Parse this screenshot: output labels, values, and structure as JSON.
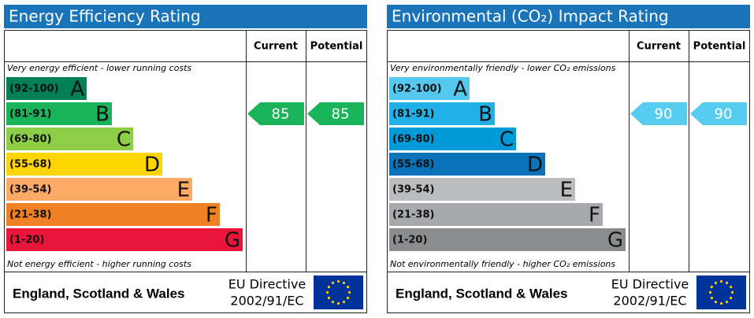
{
  "panels": [
    {
      "title": "Energy Efficiency Rating",
      "columns": [
        "Current",
        "Potential"
      ],
      "top_note": "Very energy efficient - lower running costs",
      "bottom_note": "Not energy efficient - higher running costs",
      "bands": [
        {
          "range": "(92-100)",
          "letter": "A",
          "color": "#008054"
        },
        {
          "range": "(81-91)",
          "letter": "B",
          "color": "#19b459"
        },
        {
          "range": "(69-80)",
          "letter": "C",
          "color": "#8dce46"
        },
        {
          "range": "(55-68)",
          "letter": "D",
          "color": "#ffd500"
        },
        {
          "range": "(39-54)",
          "letter": "E",
          "color": "#fcaa65"
        },
        {
          "range": "(21-38)",
          "letter": "F",
          "color": "#ef8023"
        },
        {
          "range": "(1-20)",
          "letter": "G",
          "color": "#e9153b"
        }
      ],
      "current": 85,
      "potential": 85,
      "arrow_color": "#19b459",
      "region": "England, Scotland & Wales",
      "directive": [
        "EU Directive",
        "2002/91/EC"
      ]
    },
    {
      "title": "Environmental (CO₂) Impact Rating",
      "columns": [
        "Current",
        "Potential"
      ],
      "top_note": "Very environmentally friendly - lower CO₂ emissions",
      "bottom_note": "Not environmentally friendly - higher CO₂ emissions",
      "bands": [
        {
          "range": "(92-100)",
          "letter": "A",
          "color": "#55c8f0"
        },
        {
          "range": "(81-91)",
          "letter": "B",
          "color": "#22b0e8"
        },
        {
          "range": "(69-80)",
          "letter": "C",
          "color": "#009ad8"
        },
        {
          "range": "(55-68)",
          "letter": "D",
          "color": "#0a72b8"
        },
        {
          "range": "(39-54)",
          "letter": "E",
          "color": "#bbbcbe"
        },
        {
          "range": "(21-38)",
          "letter": "F",
          "color": "#a7a9ac"
        },
        {
          "range": "(1-20)",
          "letter": "G",
          "color": "#8a8c8e"
        }
      ],
      "current": 90,
      "potential": 90,
      "arrow_color": "#55ccf0",
      "region": "England, Scotland & Wales",
      "directive": [
        "EU Directive",
        "2002/91/EC"
      ]
    }
  ]
}
